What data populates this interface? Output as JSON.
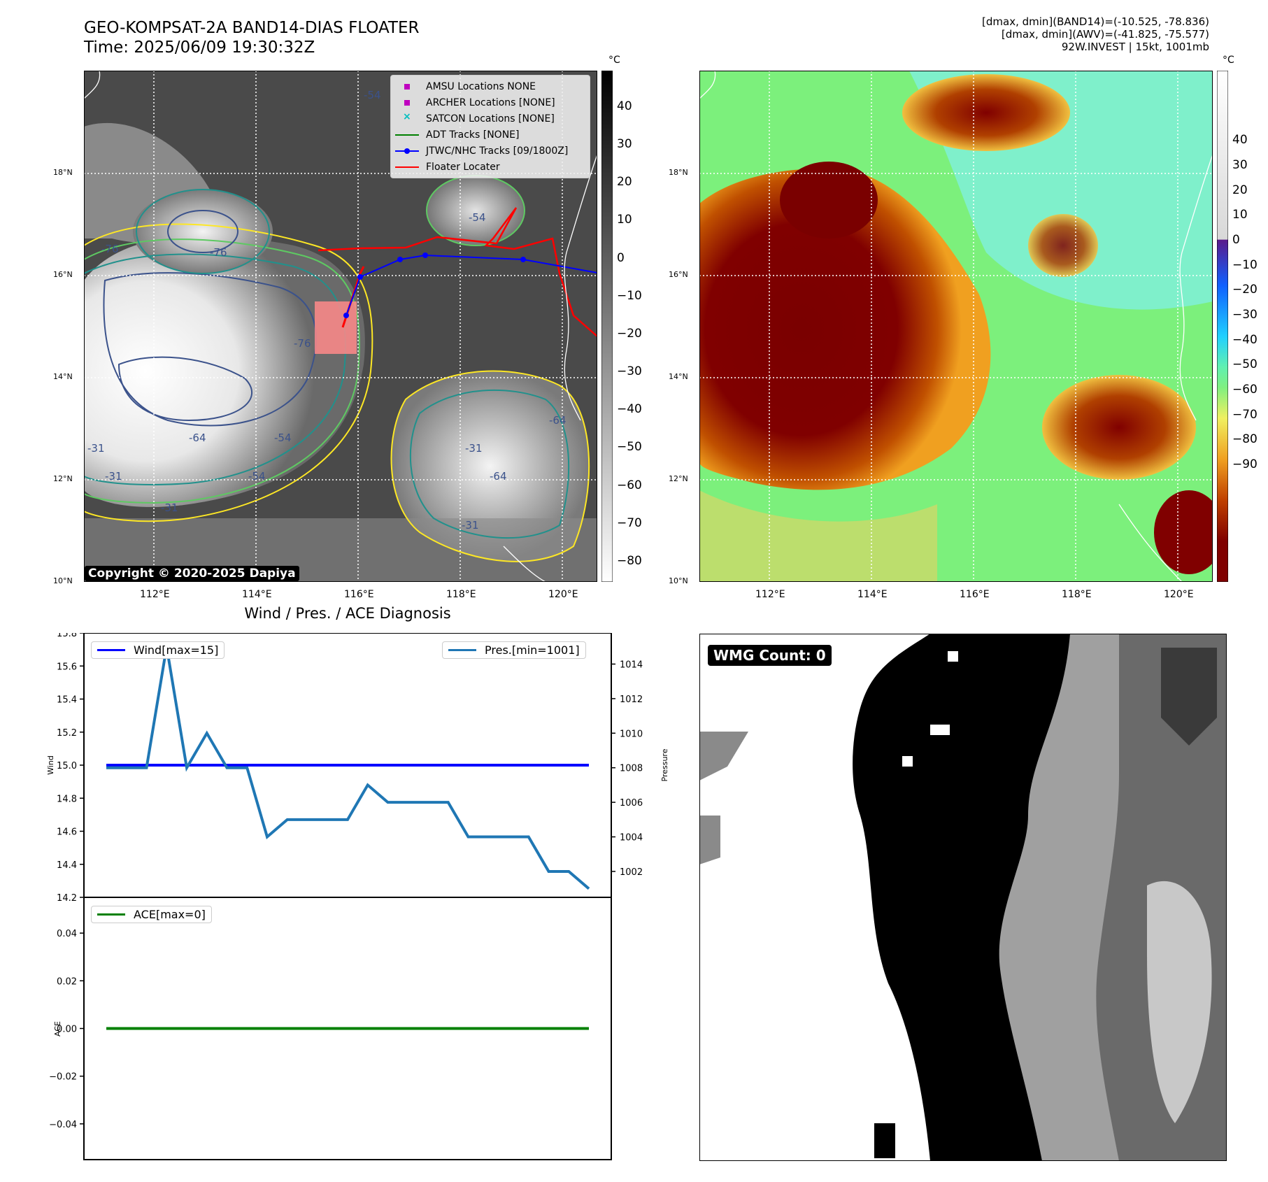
{
  "header": {
    "title_line1": "GEO-KOMPSAT-2A BAND14-DIAS FLOATER",
    "title_line2": "Time: 2025/06/09 19:30:32Z",
    "info_line1": "[dmax, dmin](BAND14)=(-10.525, -78.836)",
    "info_line2": "[dmax, dmin](AWV)=(-41.825, -75.577)",
    "info_line3": "92W.INVEST | 15kt, 1001mb"
  },
  "maps": {
    "lon_ticks": [
      "112°E",
      "114°E",
      "116°E",
      "118°E",
      "120°E"
    ],
    "lat_ticks": [
      "18°N",
      "16°N",
      "14°N",
      "12°N",
      "10°N"
    ],
    "colorbar_unit": "°C",
    "left_colorbar_ticks": [
      "40",
      "30",
      "20",
      "10",
      "0",
      "−10",
      "−20",
      "−30",
      "−40",
      "−50",
      "−60",
      "−70",
      "−80"
    ],
    "right_colorbar_ticks": [
      "40",
      "30",
      "20",
      "10",
      "0",
      "−10",
      "−20",
      "−30",
      "−40",
      "−50",
      "−60",
      "−70",
      "−80",
      "−90"
    ],
    "contour_labels": [
      "-54",
      "-76",
      "-76",
      "-76",
      "-64",
      "-54",
      "-31",
      "-54",
      "-31",
      "-31",
      "-64",
      "-54",
      "-31",
      "-64",
      "-31"
    ],
    "copyright": "Copyright © 2020-2025 Dapiya",
    "legend": [
      {
        "label": "AMSU Locations NONE",
        "marker": "square",
        "color": "#bf00bf"
      },
      {
        "label": "ARCHER Locations [NONE]",
        "marker": "square",
        "color": "#bf00bf"
      },
      {
        "label": "SATCON Locations [NONE]",
        "marker": "x",
        "color": "#00bfbf"
      },
      {
        "label": "ADT Tracks [NONE]",
        "marker": "line",
        "color": "#008000"
      },
      {
        "label": "JTWC/NHC Tracks [09/1800Z]",
        "marker": "line-dot",
        "color": "#0000ff"
      },
      {
        "label": "Floater Locater",
        "marker": "line",
        "color": "#ff0000"
      }
    ]
  },
  "diagnosis": {
    "title": "Wind / Pres. / ACE Diagnosis",
    "wind_ylabel": "Wind",
    "pres_ylabel": "Pressure",
    "ace_ylabel": "ACE",
    "wind_legend": "Wind[max=15]",
    "pres_legend": "Pres.[min=1001]",
    "ace_legend": "ACE[max=0]",
    "wind_color": "#0000ff",
    "pres_color": "#1f77b4",
    "ace_color": "#008000"
  },
  "wmg": {
    "label": "WMG Count: 0"
  },
  "chart_data": [
    {
      "type": "line",
      "series": [
        {
          "name": "Wind[max=15]",
          "axis": "left",
          "values": [
            15,
            15,
            15,
            15,
            15,
            15,
            15,
            15,
            15,
            15,
            15,
            15,
            15,
            15,
            15,
            15,
            15,
            15,
            15,
            15,
            15,
            15,
            15,
            15,
            15
          ]
        },
        {
          "name": "Pres.[min=1001]",
          "axis": "right",
          "values": [
            1008,
            1008,
            1008,
            1015,
            1008,
            1010,
            1008,
            1008,
            1004,
            1005,
            1005,
            1005,
            1005,
            1007,
            1006,
            1006,
            1006,
            1006,
            1004,
            1004,
            1004,
            1004,
            1002,
            1002,
            1001
          ]
        }
      ],
      "xlabel": "",
      "ylabel": "Wind",
      "ylabel_right": "Pressure",
      "ylim": [
        14.2,
        15.8
      ],
      "yticks": [
        14.2,
        14.4,
        14.6,
        14.8,
        15.0,
        15.2,
        15.4,
        15.6,
        15.8
      ],
      "ylim_right": [
        1000.5,
        1015.8
      ],
      "yticks_right": [
        1002,
        1004,
        1006,
        1008,
        1010,
        1012,
        1014
      ],
      "grid": false,
      "legend": [
        "upper left",
        "upper right"
      ]
    },
    {
      "type": "line",
      "series": [
        {
          "name": "ACE[max=0]",
          "values": [
            0,
            0,
            0,
            0,
            0,
            0,
            0,
            0,
            0,
            0,
            0,
            0,
            0,
            0,
            0,
            0,
            0,
            0,
            0,
            0,
            0,
            0,
            0,
            0,
            0
          ]
        }
      ],
      "ylabel": "ACE",
      "ylim": [
        -0.055,
        0.055
      ],
      "yticks": [
        -0.04,
        -0.02,
        0.0,
        0.02,
        0.04
      ],
      "grid": false,
      "legend": "upper left"
    }
  ]
}
